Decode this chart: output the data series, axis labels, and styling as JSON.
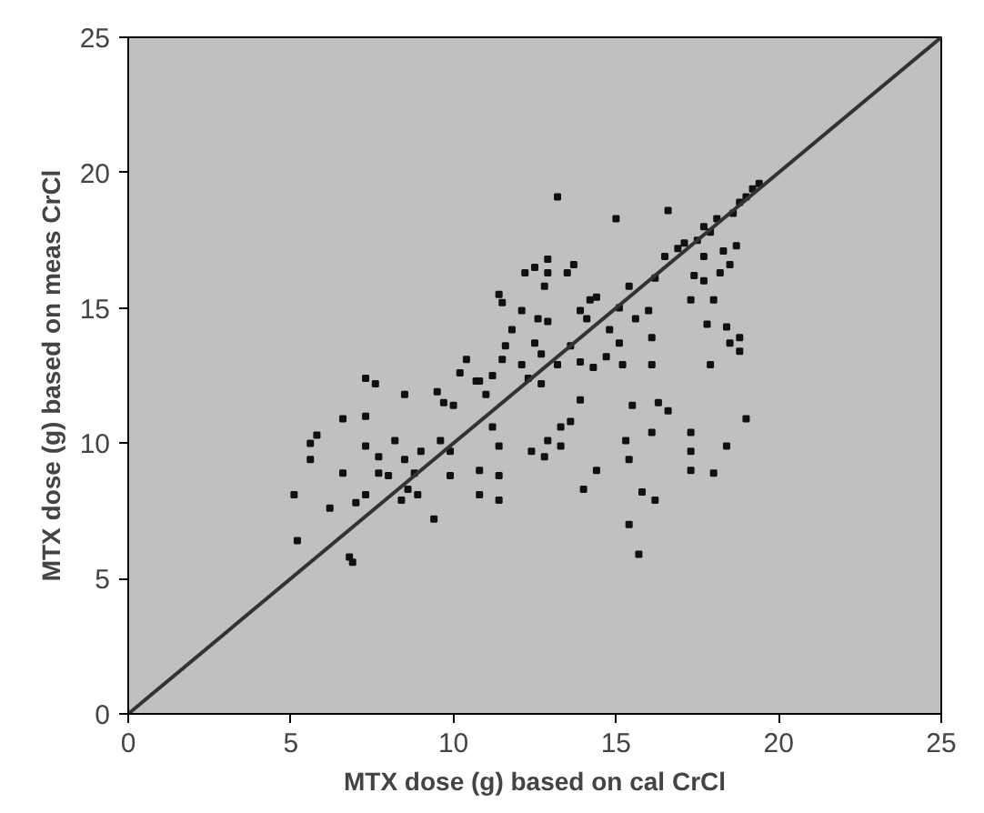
{
  "chart_data": {
    "type": "scatter",
    "xlabel": "MTX dose (g) based on cal CrCl",
    "ylabel": "MTX dose (g) based on meas CrCl",
    "xlim": [
      0,
      25
    ],
    "ylim": [
      0,
      25
    ],
    "xticks": [
      0,
      5,
      10,
      15,
      20,
      25
    ],
    "yticks": [
      0,
      5,
      10,
      15,
      20,
      25
    ],
    "grid": false,
    "marker": "square",
    "series": [
      {
        "color": "#111111",
        "x": [
          5.1,
          5.2,
          5.6,
          5.6,
          5.8,
          6.2,
          6.6,
          6.6,
          6.8,
          6.9,
          7.0,
          7.3,
          7.3,
          7.3,
          7.3,
          7.6,
          7.7,
          7.7,
          8.0,
          8.2,
          8.5,
          8.5,
          8.4,
          8.6,
          8.8,
          8.9,
          9.0,
          9.4,
          9.5,
          9.6,
          9.7,
          9.9,
          10.0,
          9.9,
          10.2,
          10.4,
          10.7,
          10.8,
          10.8,
          10.8,
          11.0,
          11.2,
          11.2,
          11.4,
          11.4,
          11.4,
          11.4,
          11.5,
          11.5,
          11.6,
          11.8,
          12.1,
          12.1,
          12.2,
          12.3,
          12.4,
          12.5,
          12.5,
          12.6,
          12.7,
          12.7,
          12.8,
          12.8,
          12.9,
          12.9,
          12.9,
          12.9,
          13.2,
          13.2,
          13.3,
          13.3,
          13.5,
          13.6,
          13.6,
          13.7,
          13.9,
          13.9,
          13.9,
          14.0,
          14.1,
          14.2,
          14.3,
          14.4,
          14.4,
          14.7,
          14.8,
          15.0,
          15.1,
          15.1,
          15.2,
          15.3,
          15.4,
          15.4,
          15.4,
          15.5,
          15.6,
          15.7,
          15.8,
          16.0,
          16.1,
          16.1,
          16.1,
          16.2,
          16.3,
          16.2,
          16.5,
          16.6,
          16.6,
          16.9,
          17.1,
          17.3,
          17.3,
          17.3,
          17.3,
          17.4,
          17.5,
          17.7,
          17.7,
          17.7,
          17.8,
          17.9,
          17.9,
          18.0,
          18.0,
          18.1,
          18.2,
          18.3,
          18.4,
          18.4,
          18.5,
          18.5,
          18.6,
          18.7,
          18.8,
          18.8,
          18.8,
          19.0,
          19.0,
          19.2,
          19.4
        ],
        "values": [
          8.1,
          6.4,
          9.4,
          10.0,
          10.3,
          7.6,
          10.9,
          8.9,
          5.8,
          5.6,
          7.8,
          11.0,
          12.4,
          8.1,
          9.9,
          12.2,
          8.9,
          9.5,
          8.8,
          10.1,
          11.8,
          9.4,
          7.9,
          8.3,
          8.9,
          8.1,
          9.7,
          7.2,
          11.9,
          10.1,
          11.5,
          9.7,
          11.4,
          8.8,
          12.6,
          13.1,
          12.3,
          12.3,
          8.1,
          9.0,
          11.8,
          12.5,
          10.6,
          15.5,
          7.9,
          8.8,
          9.9,
          15.2,
          13.1,
          13.6,
          14.2,
          14.9,
          12.9,
          16.3,
          12.4,
          9.7,
          13.7,
          16.5,
          14.6,
          12.2,
          13.3,
          9.5,
          15.8,
          16.3,
          10.1,
          16.8,
          14.5,
          12.9,
          19.1,
          9.9,
          10.6,
          16.3,
          10.8,
          13.6,
          16.6,
          11.6,
          13.0,
          14.9,
          8.3,
          14.6,
          15.3,
          12.8,
          9.0,
          15.4,
          13.2,
          14.2,
          18.3,
          13.7,
          15.0,
          12.9,
          10.1,
          15.8,
          7.0,
          9.4,
          11.4,
          14.6,
          5.9,
          8.2,
          14.9,
          13.9,
          12.9,
          10.4,
          7.9,
          11.5,
          16.1,
          16.9,
          18.6,
          11.2,
          17.2,
          17.4,
          10.4,
          9.7,
          9.0,
          15.3,
          16.2,
          17.5,
          18.0,
          16.9,
          16.0,
          14.4,
          12.9,
          17.8,
          8.9,
          15.3,
          18.3,
          16.3,
          17.1,
          14.3,
          9.9,
          16.6,
          13.7,
          18.5,
          17.3,
          13.9,
          18.9,
          13.4,
          10.9,
          19.1,
          19.4,
          19.6
        ]
      },
      {
        "type": "line",
        "color": "#333333",
        "marker": "none",
        "x": [
          0,
          25
        ],
        "values": [
          0,
          25
        ]
      }
    ]
  }
}
